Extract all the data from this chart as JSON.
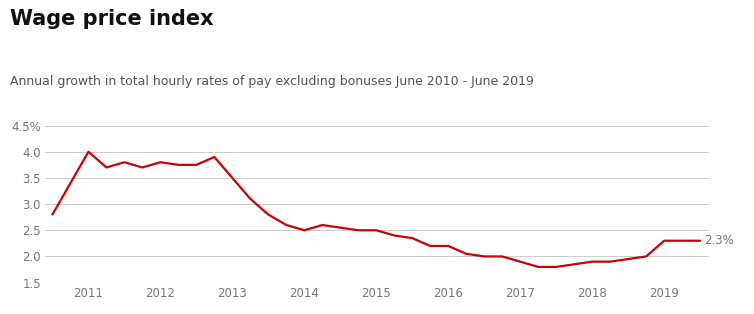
{
  "title": "Wage price index",
  "subtitle": "Annual growth in total hourly rates of pay excluding bonuses June 2010 - June 2019",
  "title_fontsize": 15,
  "subtitle_fontsize": 9,
  "line_color": "#cc0000",
  "line_width": 1.6,
  "background_color": "#ffffff",
  "ylim": [
    1.5,
    4.5
  ],
  "yticks": [
    1.5,
    2.0,
    2.5,
    3.0,
    3.5,
    4.0,
    4.5
  ],
  "last_value_label": "2.3%",
  "x_data": [
    2010.5,
    2011.0,
    2011.25,
    2011.5,
    2011.75,
    2012.0,
    2012.25,
    2012.5,
    2012.75,
    2013.0,
    2013.25,
    2013.5,
    2013.75,
    2014.0,
    2014.25,
    2014.5,
    2014.75,
    2015.0,
    2015.25,
    2015.5,
    2015.75,
    2016.0,
    2016.25,
    2016.5,
    2016.75,
    2017.0,
    2017.25,
    2017.5,
    2017.75,
    2018.0,
    2018.25,
    2018.5,
    2018.75,
    2019.0,
    2019.25,
    2019.5
  ],
  "y_data": [
    2.8,
    4.0,
    3.7,
    3.8,
    3.7,
    3.8,
    3.75,
    3.75,
    3.9,
    3.5,
    3.1,
    2.8,
    2.6,
    2.5,
    2.6,
    2.55,
    2.5,
    2.5,
    2.4,
    2.35,
    2.2,
    2.2,
    2.05,
    2.0,
    2.0,
    1.9,
    1.8,
    1.8,
    1.85,
    1.9,
    1.9,
    1.95,
    2.0,
    2.3,
    2.3,
    2.3
  ],
  "xtick_positions": [
    2011,
    2012,
    2013,
    2014,
    2015,
    2016,
    2017,
    2018,
    2019
  ],
  "grid_color": "#cccccc",
  "tick_label_color": "#777777",
  "tick_fontsize": 8.5,
  "annotation_color": "#777777"
}
